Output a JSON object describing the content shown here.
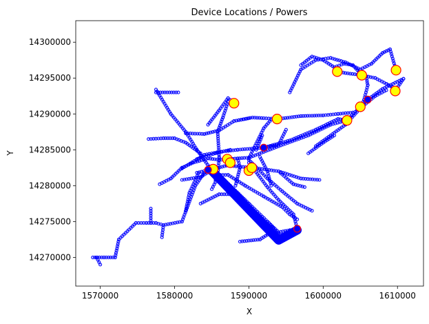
{
  "chart_data": {
    "type": "scatter",
    "title": "Device Locations / Powers",
    "xlabel": "X",
    "ylabel": "Y",
    "xlim": [
      1566700,
      1613500
    ],
    "ylim": [
      14266000,
      14303000
    ],
    "xticks": [
      1570000,
      1580000,
      1590000,
      1600000,
      1610000
    ],
    "yticks": [
      14270000,
      14275000,
      14280000,
      14285000,
      14290000,
      14295000,
      14300000
    ],
    "xtick_labels": [
      "1570000",
      "1580000",
      "1590000",
      "1600000",
      "1610000"
    ],
    "ytick_labels": [
      "14270000",
      "14275000",
      "14280000",
      "14285000",
      "14290000",
      "14295000",
      "14300000"
    ],
    "grid": false,
    "colors": {
      "network": "#0000ff",
      "device_fill": "#ffff00",
      "device_edge": "#ff0000",
      "thin_marker_edge": "#ff0000"
    },
    "network_lines": [
      [
        [
          1569000,
          14270000
        ],
        [
          1570500,
          14270000
        ],
        [
          1572000,
          14270000
        ],
        [
          1572500,
          14272500
        ],
        [
          1574800,
          14274800
        ],
        [
          1576200,
          14274800
        ],
        [
          1577500,
          14274800
        ],
        [
          1578500,
          14274500
        ],
        [
          1581000,
          14275000
        ],
        [
          1582800,
          14280000
        ],
        [
          1584000,
          14281800
        ],
        [
          1584800,
          14282200
        ]
      ],
      [
        [
          1569500,
          14270000
        ],
        [
          1570000,
          14269000
        ]
      ],
      [
        [
          1576800,
          14274800
        ],
        [
          1576800,
          14276800
        ]
      ],
      [
        [
          1578500,
          14274500
        ],
        [
          1578300,
          14272800
        ]
      ],
      [
        [
          1578000,
          14280200
        ],
        [
          1579500,
          14281000
        ],
        [
          1581000,
          14282500
        ],
        [
          1582500,
          14283200
        ],
        [
          1584500,
          14283800
        ],
        [
          1586000,
          14283600
        ],
        [
          1587200,
          14283700
        ],
        [
          1590000,
          14283900
        ],
        [
          1594000,
          14285500
        ],
        [
          1598000,
          14287000
        ],
        [
          1601000,
          14288500
        ],
        [
          1603200,
          14289100
        ],
        [
          1605000,
          14291000
        ],
        [
          1606000,
          14292000
        ],
        [
          1608000,
          14293500
        ],
        [
          1610800,
          14294900
        ]
      ],
      [
        [
          1581000,
          14282400
        ],
        [
          1584000,
          14284300
        ],
        [
          1586000,
          14284700
        ],
        [
          1588500,
          14285000
        ],
        [
          1592000,
          14285300
        ],
        [
          1595500,
          14286300
        ],
        [
          1599000,
          14287800
        ],
        [
          1602000,
          14289300
        ],
        [
          1603200,
          14289100
        ]
      ],
      [
        [
          1577500,
          14293400
        ],
        [
          1579500,
          14290000
        ],
        [
          1581500,
          14287500
        ],
        [
          1583000,
          14285000
        ],
        [
          1584800,
          14282400
        ]
      ],
      [
        [
          1576500,
          14286500
        ],
        [
          1578500,
          14286600
        ],
        [
          1580000,
          14286600
        ]
      ],
      [
        [
          1580000,
          14286600
        ],
        [
          1581500,
          14286000
        ],
        [
          1583500,
          14284500
        ]
      ],
      [
        [
          1577500,
          14293000
        ],
        [
          1580500,
          14293000
        ]
      ],
      [
        [
          1584500,
          14288500
        ],
        [
          1586000,
          14290500
        ],
        [
          1587200,
          14292200
        ],
        [
          1588000,
          14291500
        ]
      ],
      [
        [
          1581500,
          14287300
        ],
        [
          1584000,
          14287200
        ],
        [
          1586000,
          14287700
        ],
        [
          1588000,
          14289000
        ],
        [
          1590500,
          14289500
        ],
        [
          1592000,
          14289400
        ],
        [
          1594000,
          14289300
        ],
        [
          1597000,
          14289700
        ],
        [
          1600000,
          14289800
        ],
        [
          1602000,
          14290000
        ],
        [
          1604000,
          14290200
        ]
      ],
      [
        [
          1586000,
          14284000
        ],
        [
          1585800,
          14287500
        ],
        [
          1586500,
          14289500
        ],
        [
          1587200,
          14291700
        ]
      ],
      [
        [
          1588000,
          14289000
        ],
        [
          1590000,
          14289400
        ]
      ],
      [
        [
          1583000,
          14283700
        ],
        [
          1585500,
          14284500
        ],
        [
          1587500,
          14285000
        ]
      ],
      [
        [
          1583000,
          14281800
        ],
        [
          1585200,
          14282300
        ],
        [
          1587000,
          14282800
        ],
        [
          1590500,
          14282500
        ],
        [
          1594000,
          14282000
        ],
        [
          1597000,
          14281000
        ],
        [
          1599500,
          14280800
        ]
      ],
      [
        [
          1581000,
          14280800
        ],
        [
          1583500,
          14281200
        ],
        [
          1585200,
          14282300
        ]
      ],
      [
        [
          1584700,
          14281900
        ],
        [
          1594000,
          14272500
        ]
      ],
      [
        [
          1585200,
          14282300
        ],
        [
          1587500,
          14280000
        ],
        [
          1590000,
          14277500
        ],
        [
          1592500,
          14275000
        ],
        [
          1594200,
          14273000
        ],
        [
          1595500,
          14273500
        ],
        [
          1596500,
          14274000
        ],
        [
          1596000,
          14276000
        ],
        [
          1594000,
          14278000
        ],
        [
          1592500,
          14279800
        ]
      ],
      [
        [
          1592500,
          14279800
        ],
        [
          1590000,
          14283200
        ]
      ],
      [
        [
          1588500,
          14283800
        ],
        [
          1588800,
          14282500
        ],
        [
          1588200,
          14280000
        ]
      ],
      [
        [
          1583500,
          14277500
        ],
        [
          1586000,
          14278800
        ],
        [
          1588000,
          14278800
        ]
      ],
      [
        [
          1581500,
          14276500
        ],
        [
          1582000,
          14279000
        ],
        [
          1583200,
          14281700
        ]
      ],
      [
        [
          1586000,
          14283800
        ],
        [
          1585800,
          14281500
        ],
        [
          1587200,
          14281500
        ],
        [
          1589500,
          14280000
        ],
        [
          1592000,
          14278500
        ],
        [
          1594500,
          14277000
        ],
        [
          1595500,
          14276000
        ],
        [
          1596500,
          14275300
        ]
      ],
      [
        [
          1590000,
          14283600
        ],
        [
          1592500,
          14281000
        ],
        [
          1594500,
          14279200
        ],
        [
          1596500,
          14277500
        ],
        [
          1598500,
          14276500
        ]
      ],
      [
        [
          1591500,
          14284000
        ],
        [
          1592500,
          14282000
        ],
        [
          1593000,
          14280000
        ]
      ],
      [
        [
          1588800,
          14272200
        ],
        [
          1591500,
          14272500
        ],
        [
          1593000,
          14273500
        ]
      ],
      [
        [
          1592500,
          14275000
        ],
        [
          1594000,
          14273500
        ],
        [
          1595500,
          14273800
        ]
      ],
      [
        [
          1590000,
          14283800
        ],
        [
          1592000,
          14288000
        ],
        [
          1593000,
          14289200
        ]
      ],
      [
        [
          1594000,
          14282000
        ],
        [
          1596000,
          14280200
        ],
        [
          1597500,
          14279800
        ]
      ],
      [
        [
          1591000,
          14285000
        ],
        [
          1591800,
          14287000
        ]
      ],
      [
        [
          1594000,
          14285700
        ],
        [
          1595000,
          14287800
        ]
      ],
      [
        [
          1595500,
          14293000
        ],
        [
          1597000,
          14296200
        ],
        [
          1599000,
          14297500
        ],
        [
          1601000,
          14297800
        ],
        [
          1603000,
          14297200
        ],
        [
          1605000,
          14296200
        ],
        [
          1606500,
          14297000
        ],
        [
          1608000,
          14298500
        ],
        [
          1609000,
          14299000
        ],
        [
          1609800,
          14296100
        ]
      ],
      [
        [
          1597000,
          14296800
        ],
        [
          1598500,
          14298000
        ],
        [
          1600000,
          14297500
        ],
        [
          1601500,
          14296500
        ],
        [
          1602800,
          14297000
        ],
        [
          1604000,
          14296800
        ],
        [
          1605200,
          14295400
        ]
      ],
      [
        [
          1601500,
          14296000
        ],
        [
          1603000,
          14295700
        ],
        [
          1605200,
          14295400
        ],
        [
          1607000,
          14295000
        ],
        [
          1608500,
          14294200
        ],
        [
          1609800,
          14293400
        ],
        [
          1610800,
          14294900
        ]
      ],
      [
        [
          1605000,
          14290500
        ],
        [
          1605500,
          14292000
        ],
        [
          1606000,
          14294000
        ],
        [
          1605800,
          14295200
        ]
      ],
      [
        [
          1599000,
          14285500
        ],
        [
          1601000,
          14287000
        ],
        [
          1603000,
          14288500
        ],
        [
          1605000,
          14290800
        ],
        [
          1607000,
          14292500
        ],
        [
          1608500,
          14293300
        ]
      ],
      [
        [
          1598000,
          14284500
        ],
        [
          1600000,
          14286000
        ],
        [
          1601500,
          14287000
        ]
      ],
      [
        [
          1592000,
          14285300
        ],
        [
          1594000,
          14285700
        ]
      ],
      [
        [
          1585500,
          14282300
        ],
        [
          1585500,
          14280500
        ],
        [
          1585000,
          14279500
        ]
      ]
    ],
    "thick_segment": [
      [
        1584800,
        14282300
      ],
      [
        1594000,
        14272400
      ],
      [
        1596500,
        14273800
      ]
    ],
    "devices": [
      {
        "x": 1588000,
        "y": 14291500,
        "size": "large"
      },
      {
        "x": 1593800,
        "y": 14289300,
        "size": "large"
      },
      {
        "x": 1601900,
        "y": 14295900,
        "size": "large"
      },
      {
        "x": 1605200,
        "y": 14295400,
        "size": "large"
      },
      {
        "x": 1609800,
        "y": 14296100,
        "size": "large"
      },
      {
        "x": 1609700,
        "y": 14293200,
        "size": "large"
      },
      {
        "x": 1605000,
        "y": 14291000,
        "size": "large"
      },
      {
        "x": 1603200,
        "y": 14289100,
        "size": "large"
      },
      {
        "x": 1587100,
        "y": 14283700,
        "size": "large"
      },
      {
        "x": 1587500,
        "y": 14283200,
        "size": "large"
      },
      {
        "x": 1585200,
        "y": 14282300,
        "size": "large"
      },
      {
        "x": 1590000,
        "y": 14282100,
        "size": "large"
      },
      {
        "x": 1590400,
        "y": 14282500,
        "size": "large"
      },
      {
        "x": 1584500,
        "y": 14282200,
        "size": "small"
      },
      {
        "x": 1592000,
        "y": 14285300,
        "size": "small"
      },
      {
        "x": 1606000,
        "y": 14292000,
        "size": "small"
      },
      {
        "x": 1596500,
        "y": 14274000,
        "size": "small"
      }
    ]
  }
}
